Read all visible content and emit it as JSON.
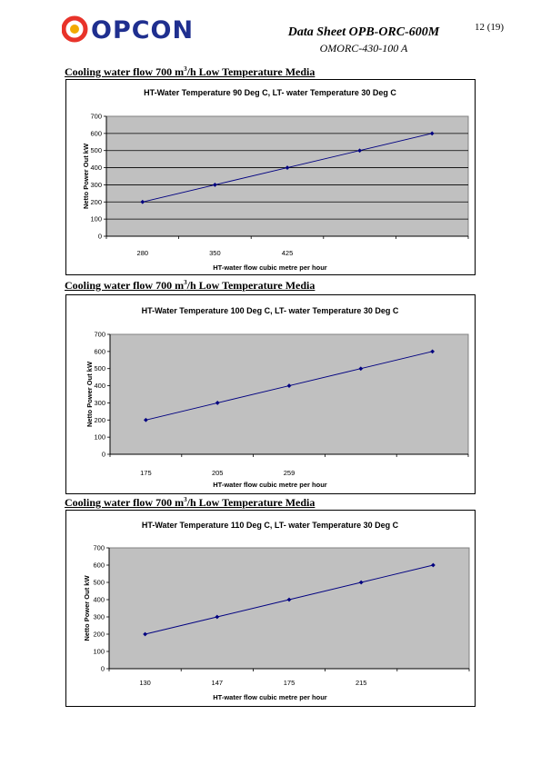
{
  "header": {
    "logo_text": "OPCON",
    "doc_title": "Data Sheet OPB-ORC-600M",
    "doc_subtitle": "OMORC-430-100 A",
    "page_number": "12 (19)",
    "logo_icon": "opcon-logo-icon"
  },
  "sections": [
    {
      "heading_pre": "Cooling water flow 700 m",
      "heading_sup": "3",
      "heading_post": "/h Low Temperature Media"
    },
    {
      "heading_pre": "Cooling water flow 700 m",
      "heading_sup": "3",
      "heading_post": "/h Low Temperature Media"
    },
    {
      "heading_pre": "Cooling water flow 700 m",
      "heading_sup": "3",
      "heading_post": "/h Low Temperature Media"
    }
  ],
  "chart_data": [
    {
      "type": "line",
      "title": "HT-Water Temperature 90 Deg C, LT- water Temperature 30 Deg C",
      "xlabel": "HT-water flow cubic metre per hour",
      "ylabel": "Netto Power Out kW",
      "categories": [
        "280",
        "350",
        "425",
        "",
        ""
      ],
      "values": [
        200,
        300,
        400,
        500,
        600
      ],
      "ylim": [
        0,
        700
      ],
      "yticks": [
        0,
        100,
        200,
        300,
        400,
        500,
        600,
        700
      ],
      "grid": true,
      "colors": {
        "line": "#000080",
        "plot_bg": "#c0c0c0"
      }
    },
    {
      "type": "line",
      "title": "HT-Water Temperature 100 Deg C, LT- water Temperature 30 Deg C",
      "xlabel": "HT-water flow cubic metre per hour",
      "ylabel": "Netto Power Out kW",
      "categories": [
        "175",
        "205",
        "259",
        "",
        ""
      ],
      "values": [
        200,
        300,
        400,
        500,
        600
      ],
      "ylim": [
        0,
        700
      ],
      "yticks": [
        0,
        100,
        200,
        300,
        400,
        500,
        600,
        700
      ],
      "grid": false,
      "colors": {
        "line": "#000080",
        "plot_bg": "#c0c0c0"
      }
    },
    {
      "type": "line",
      "title": "HT-Water Temperature 110 Deg C, LT- water Temperature 30 Deg C",
      "xlabel": "HT-water flow cubic metre per hour",
      "ylabel": "Netto Power Out kW",
      "categories": [
        "130",
        "147",
        "175",
        "215",
        ""
      ],
      "values": [
        200,
        300,
        400,
        500,
        600
      ],
      "ylim": [
        0,
        700
      ],
      "yticks": [
        0,
        100,
        200,
        300,
        400,
        500,
        600,
        700
      ],
      "grid": false,
      "colors": {
        "line": "#000080",
        "plot_bg": "#c0c0c0"
      }
    }
  ]
}
